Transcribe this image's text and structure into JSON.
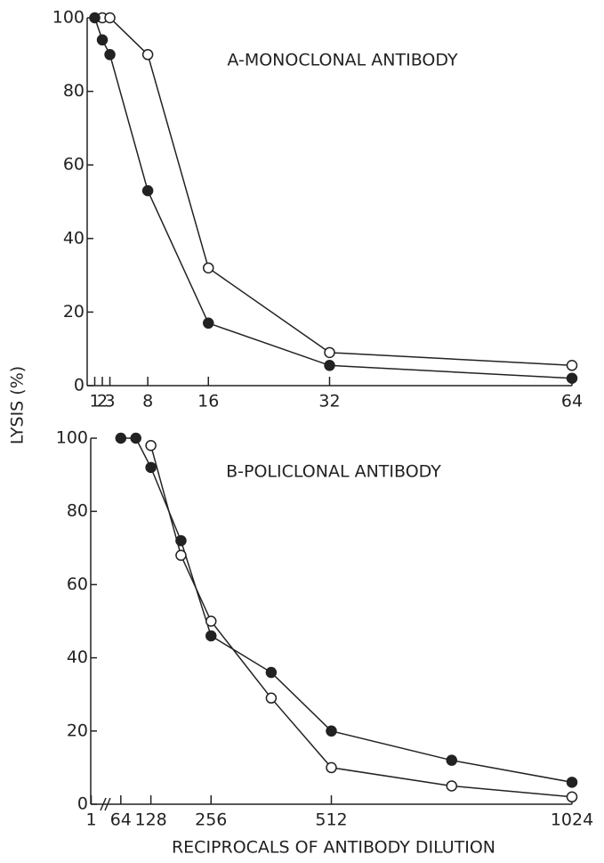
{
  "chart_data": [
    {
      "type": "line",
      "title": "A-MONOCLONAL ANTIBODY",
      "ylabel": "LYSIS (%)",
      "xlim": [
        0,
        64
      ],
      "xticks": [
        1,
        2,
        3,
        8,
        16,
        32,
        64
      ],
      "ylim": [
        0,
        100
      ],
      "yticks": [
        0,
        20,
        40,
        60,
        80,
        100
      ],
      "series": [
        {
          "marker": "open",
          "color": "#222222",
          "x": [
            2,
            3,
            8,
            16,
            32,
            64
          ],
          "values": [
            100,
            100,
            90,
            32,
            9,
            5.5
          ]
        },
        {
          "marker": "filled",
          "color": "#222222",
          "x": [
            1,
            2,
            3,
            8,
            16,
            32,
            64
          ],
          "values": [
            100,
            94,
            90,
            53,
            17,
            5.5,
            2
          ]
        }
      ]
    },
    {
      "type": "line",
      "title": "B-POLICLONAL ANTIBODY",
      "xlabel": "RECIPROCALS OF ANTIBODY DILUTION",
      "xlim": [
        0,
        1024
      ],
      "xticks": [
        1,
        64,
        128,
        256,
        512,
        1024
      ],
      "ylim": [
        0,
        100
      ],
      "yticks": [
        0,
        20,
        40,
        60,
        80,
        100
      ],
      "series": [
        {
          "marker": "open",
          "color": "#222222",
          "x": [
            128,
            192,
            256,
            384,
            512,
            768,
            1024
          ],
          "values": [
            98,
            68,
            50,
            29,
            10,
            5,
            2
          ]
        },
        {
          "marker": "filled",
          "color": "#222222",
          "x": [
            64,
            96,
            128,
            192,
            256,
            384,
            512,
            768,
            1024
          ],
          "values": [
            100,
            100,
            92,
            72,
            46,
            36,
            20,
            12,
            6
          ]
        }
      ]
    }
  ]
}
